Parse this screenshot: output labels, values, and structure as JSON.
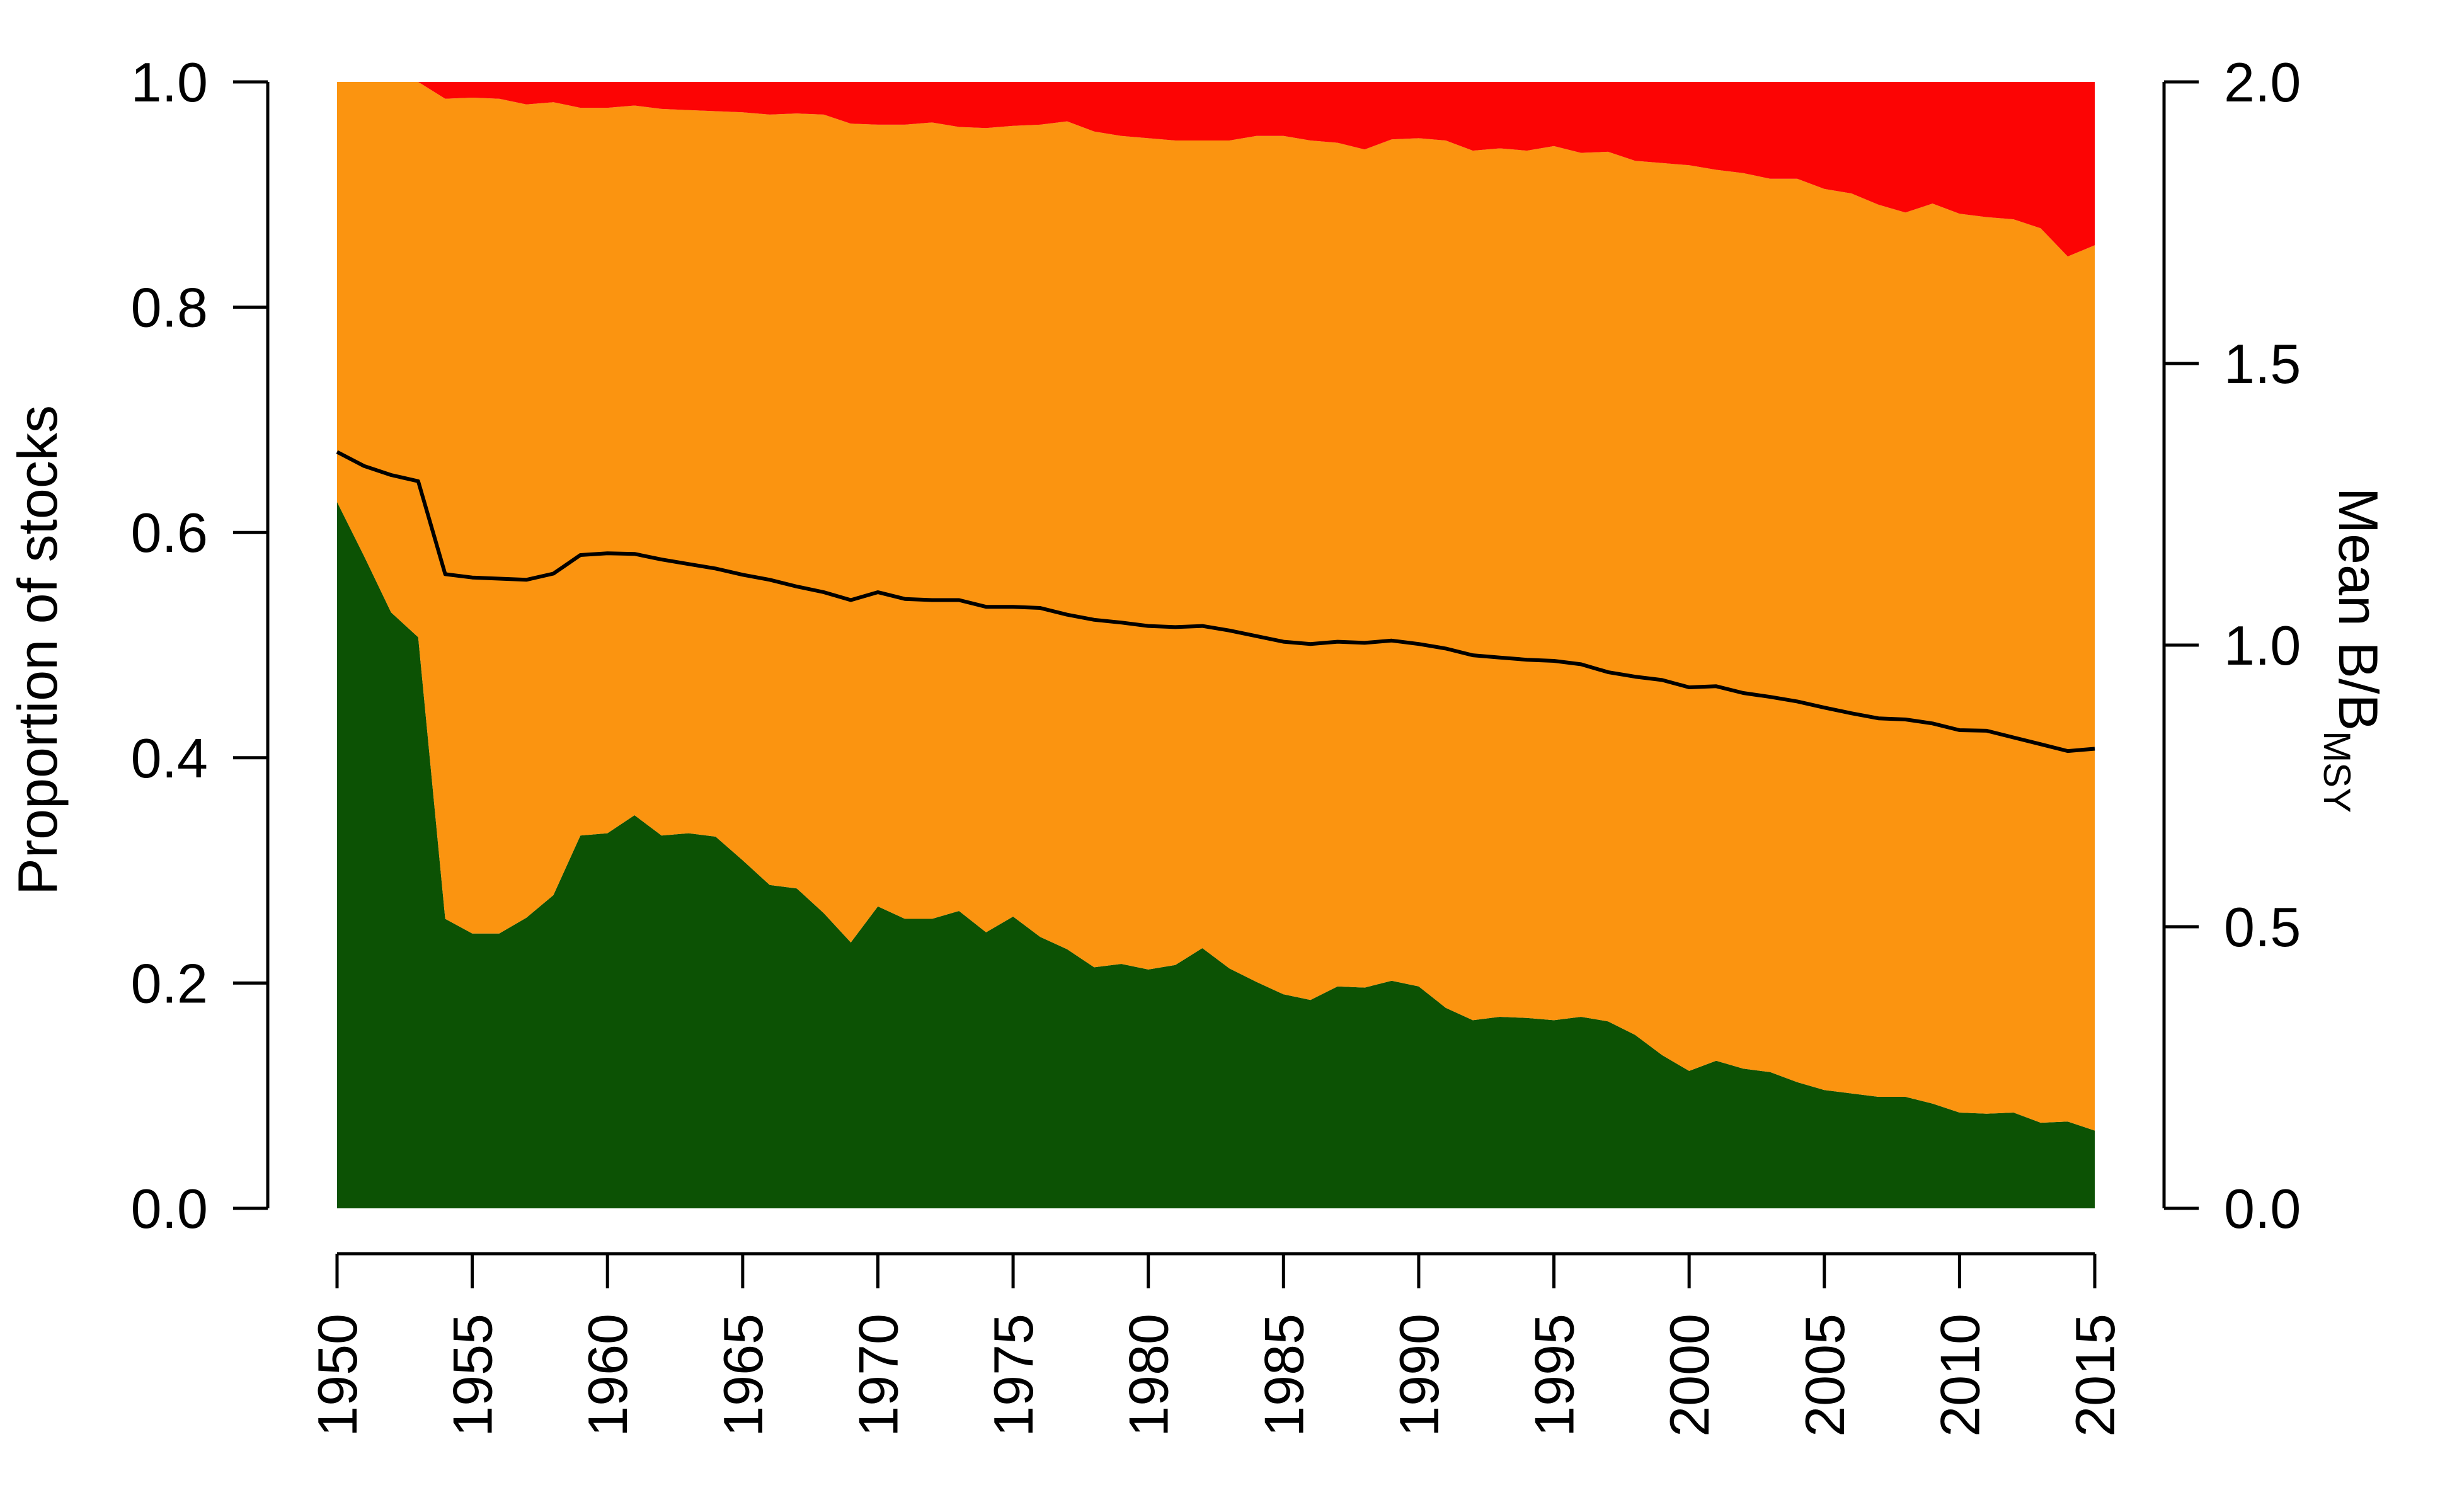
{
  "chart_data": {
    "type": "area",
    "stacked": true,
    "x": [
      1950,
      1951,
      1952,
      1953,
      1954,
      1955,
      1956,
      1957,
      1958,
      1959,
      1960,
      1961,
      1962,
      1963,
      1964,
      1965,
      1966,
      1967,
      1968,
      1969,
      1970,
      1971,
      1972,
      1973,
      1974,
      1975,
      1976,
      1977,
      1978,
      1979,
      1980,
      1981,
      1982,
      1983,
      1984,
      1985,
      1986,
      1987,
      1988,
      1989,
      1990,
      1991,
      1992,
      1993,
      1994,
      1995,
      1996,
      1997,
      1998,
      1999,
      2000,
      2001,
      2002,
      2003,
      2004,
      2005,
      2006,
      2007,
      2008,
      2009,
      2010,
      2011,
      2012,
      2013,
      2014,
      2015
    ],
    "series": [
      {
        "color": "#0c5204",
        "values": [
          0.627,
          0.579,
          0.529,
          0.507,
          0.257,
          0.244,
          0.244,
          0.258,
          0.278,
          0.331,
          0.333,
          0.349,
          0.331,
          0.333,
          0.33,
          0.309,
          0.287,
          0.284,
          0.262,
          0.236,
          0.268,
          0.257,
          0.257,
          0.264,
          0.245,
          0.259,
          0.241,
          0.23,
          0.214,
          0.217,
          0.212,
          0.216,
          0.231,
          0.213,
          0.201,
          0.19,
          0.185,
          0.197,
          0.196,
          0.202,
          0.197,
          0.178,
          0.167,
          0.17,
          0.169,
          0.167,
          0.17,
          0.166,
          0.154,
          0.136,
          0.122,
          0.131,
          0.124,
          0.121,
          0.112,
          0.105,
          0.102,
          0.099,
          0.099,
          0.093,
          0.085,
          0.084,
          0.085,
          0.076,
          0.077,
          0.069
        ]
      },
      {
        "color": "#fb9410",
        "values": [
          0.373,
          0.421,
          0.471,
          0.493,
          0.728,
          0.742,
          0.741,
          0.722,
          0.704,
          0.646,
          0.644,
          0.63,
          0.645,
          0.642,
          0.644,
          0.664,
          0.684,
          0.688,
          0.709,
          0.727,
          0.694,
          0.705,
          0.707,
          0.696,
          0.714,
          0.702,
          0.721,
          0.735,
          0.742,
          0.735,
          0.738,
          0.732,
          0.717,
          0.735,
          0.751,
          0.762,
          0.763,
          0.749,
          0.744,
          0.747,
          0.753,
          0.77,
          0.772,
          0.771,
          0.77,
          0.776,
          0.767,
          0.772,
          0.776,
          0.792,
          0.804,
          0.791,
          0.795,
          0.793,
          0.802,
          0.8,
          0.799,
          0.792,
          0.785,
          0.799,
          0.798,
          0.796,
          0.793,
          0.794,
          0.768,
          0.786
        ]
      },
      {
        "color": "#fc0404",
        "values": [
          0.0,
          0.0,
          0.0,
          0.0,
          0.015,
          0.014,
          0.015,
          0.02,
          0.018,
          0.023,
          0.023,
          0.021,
          0.024,
          0.025,
          0.026,
          0.027,
          0.029,
          0.028,
          0.029,
          0.037,
          0.038,
          0.038,
          0.036,
          0.04,
          0.041,
          0.039,
          0.038,
          0.035,
          0.044,
          0.048,
          0.05,
          0.052,
          0.052,
          0.052,
          0.048,
          0.048,
          0.052,
          0.054,
          0.06,
          0.051,
          0.05,
          0.052,
          0.061,
          0.059,
          0.061,
          0.057,
          0.063,
          0.062,
          0.07,
          0.072,
          0.074,
          0.078,
          0.081,
          0.086,
          0.086,
          0.095,
          0.099,
          0.109,
          0.116,
          0.108,
          0.117,
          0.12,
          0.122,
          0.13,
          0.155,
          0.145
        ]
      }
    ],
    "line": {
      "axis": "right",
      "color": "#000000",
      "values": [
        1.343,
        1.318,
        1.302,
        1.291,
        1.126,
        1.12,
        1.118,
        1.116,
        1.127,
        1.16,
        1.163,
        1.162,
        1.152,
        1.144,
        1.136,
        1.125,
        1.116,
        1.104,
        1.094,
        1.08,
        1.094,
        1.082,
        1.08,
        1.08,
        1.068,
        1.068,
        1.066,
        1.054,
        1.045,
        1.04,
        1.034,
        1.032,
        1.034,
        1.026,
        1.016,
        1.006,
        1.002,
        1.006,
        1.004,
        1.008,
        1.002,
        0.994,
        0.982,
        0.978,
        0.974,
        0.972,
        0.966,
        0.952,
        0.944,
        0.938,
        0.925,
        0.927,
        0.915,
        0.908,
        0.9,
        0.889,
        0.879,
        0.87,
        0.868,
        0.861,
        0.849,
        0.848,
        0.836,
        0.824,
        0.812,
        0.816
      ]
    },
    "ylabel": "Proportion of stocks",
    "ylabel_right_main": "Mean B/B",
    "ylabel_right_sub": "MSY",
    "ylim": [
      0,
      1
    ],
    "ylim_right": [
      0,
      2
    ],
    "xlim": [
      1950,
      2015
    ],
    "xticks": [
      1950,
      1955,
      1960,
      1965,
      1970,
      1975,
      1980,
      1985,
      1990,
      1995,
      2000,
      2005,
      2010,
      2015
    ],
    "xtick_labels": [
      "1950",
      "1955",
      "1960",
      "1965",
      "1970",
      "1975",
      "1980",
      "1985",
      "1990",
      "1995",
      "2000",
      "2005",
      "2010",
      "2015"
    ],
    "yticks": [
      0,
      0.2,
      0.4,
      0.6,
      0.8,
      1.0
    ],
    "ytick_labels": [
      "0.0",
      "0.2",
      "0.4",
      "0.6",
      "0.8",
      "1.0"
    ],
    "yticks_right": [
      0,
      0.5,
      1.0,
      1.5,
      2.0
    ],
    "ytick_labels_right": [
      "0.0",
      "0.5",
      "1.0",
      "1.5",
      "2.0"
    ],
    "grid": false,
    "legend": "none"
  }
}
